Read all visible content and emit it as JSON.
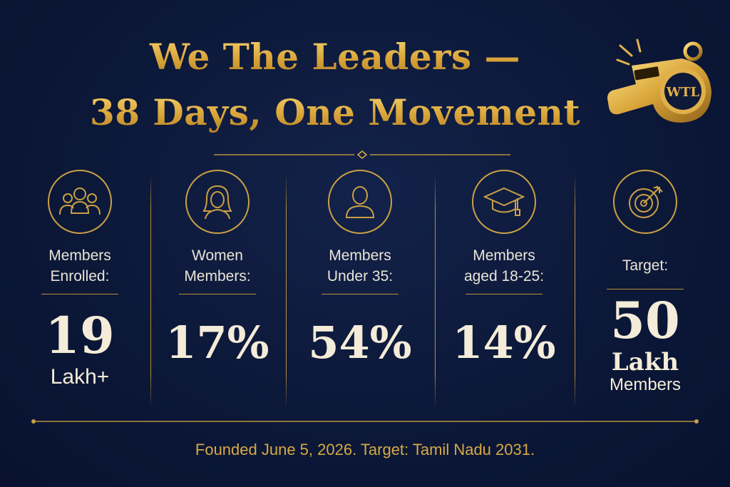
{
  "header": {
    "title_line1": "We The Leaders —",
    "title_line2": "38 Days, One Movement"
  },
  "whistle": {
    "badge_text": "WTL"
  },
  "stats": [
    {
      "icon": "group-icon",
      "label_line1": "Members",
      "label_line2": "Enrolled:",
      "value": "19",
      "value_sub": "Lakh+"
    },
    {
      "icon": "woman-icon",
      "label_line1": "Women",
      "label_line2": "Members:",
      "value": "17%"
    },
    {
      "icon": "person-icon",
      "label_line1": "Members",
      "label_line2": "Under 35:",
      "value": "54%"
    },
    {
      "icon": "graduation-cap-icon",
      "label_line1": "Members",
      "label_line2": "aged 18-25:",
      "value": "14%"
    },
    {
      "icon": "target-icon",
      "label_line1": "Target:",
      "value": "50",
      "value_sub": "Lakh",
      "value_sub2": "Members"
    }
  ],
  "footer": {
    "text": "Founded June 5, 2026. Target: Tamil Nadu 2031."
  },
  "colors": {
    "background": "#0c1838",
    "gold": "#c9a045",
    "text": "#f4ecd8"
  }
}
